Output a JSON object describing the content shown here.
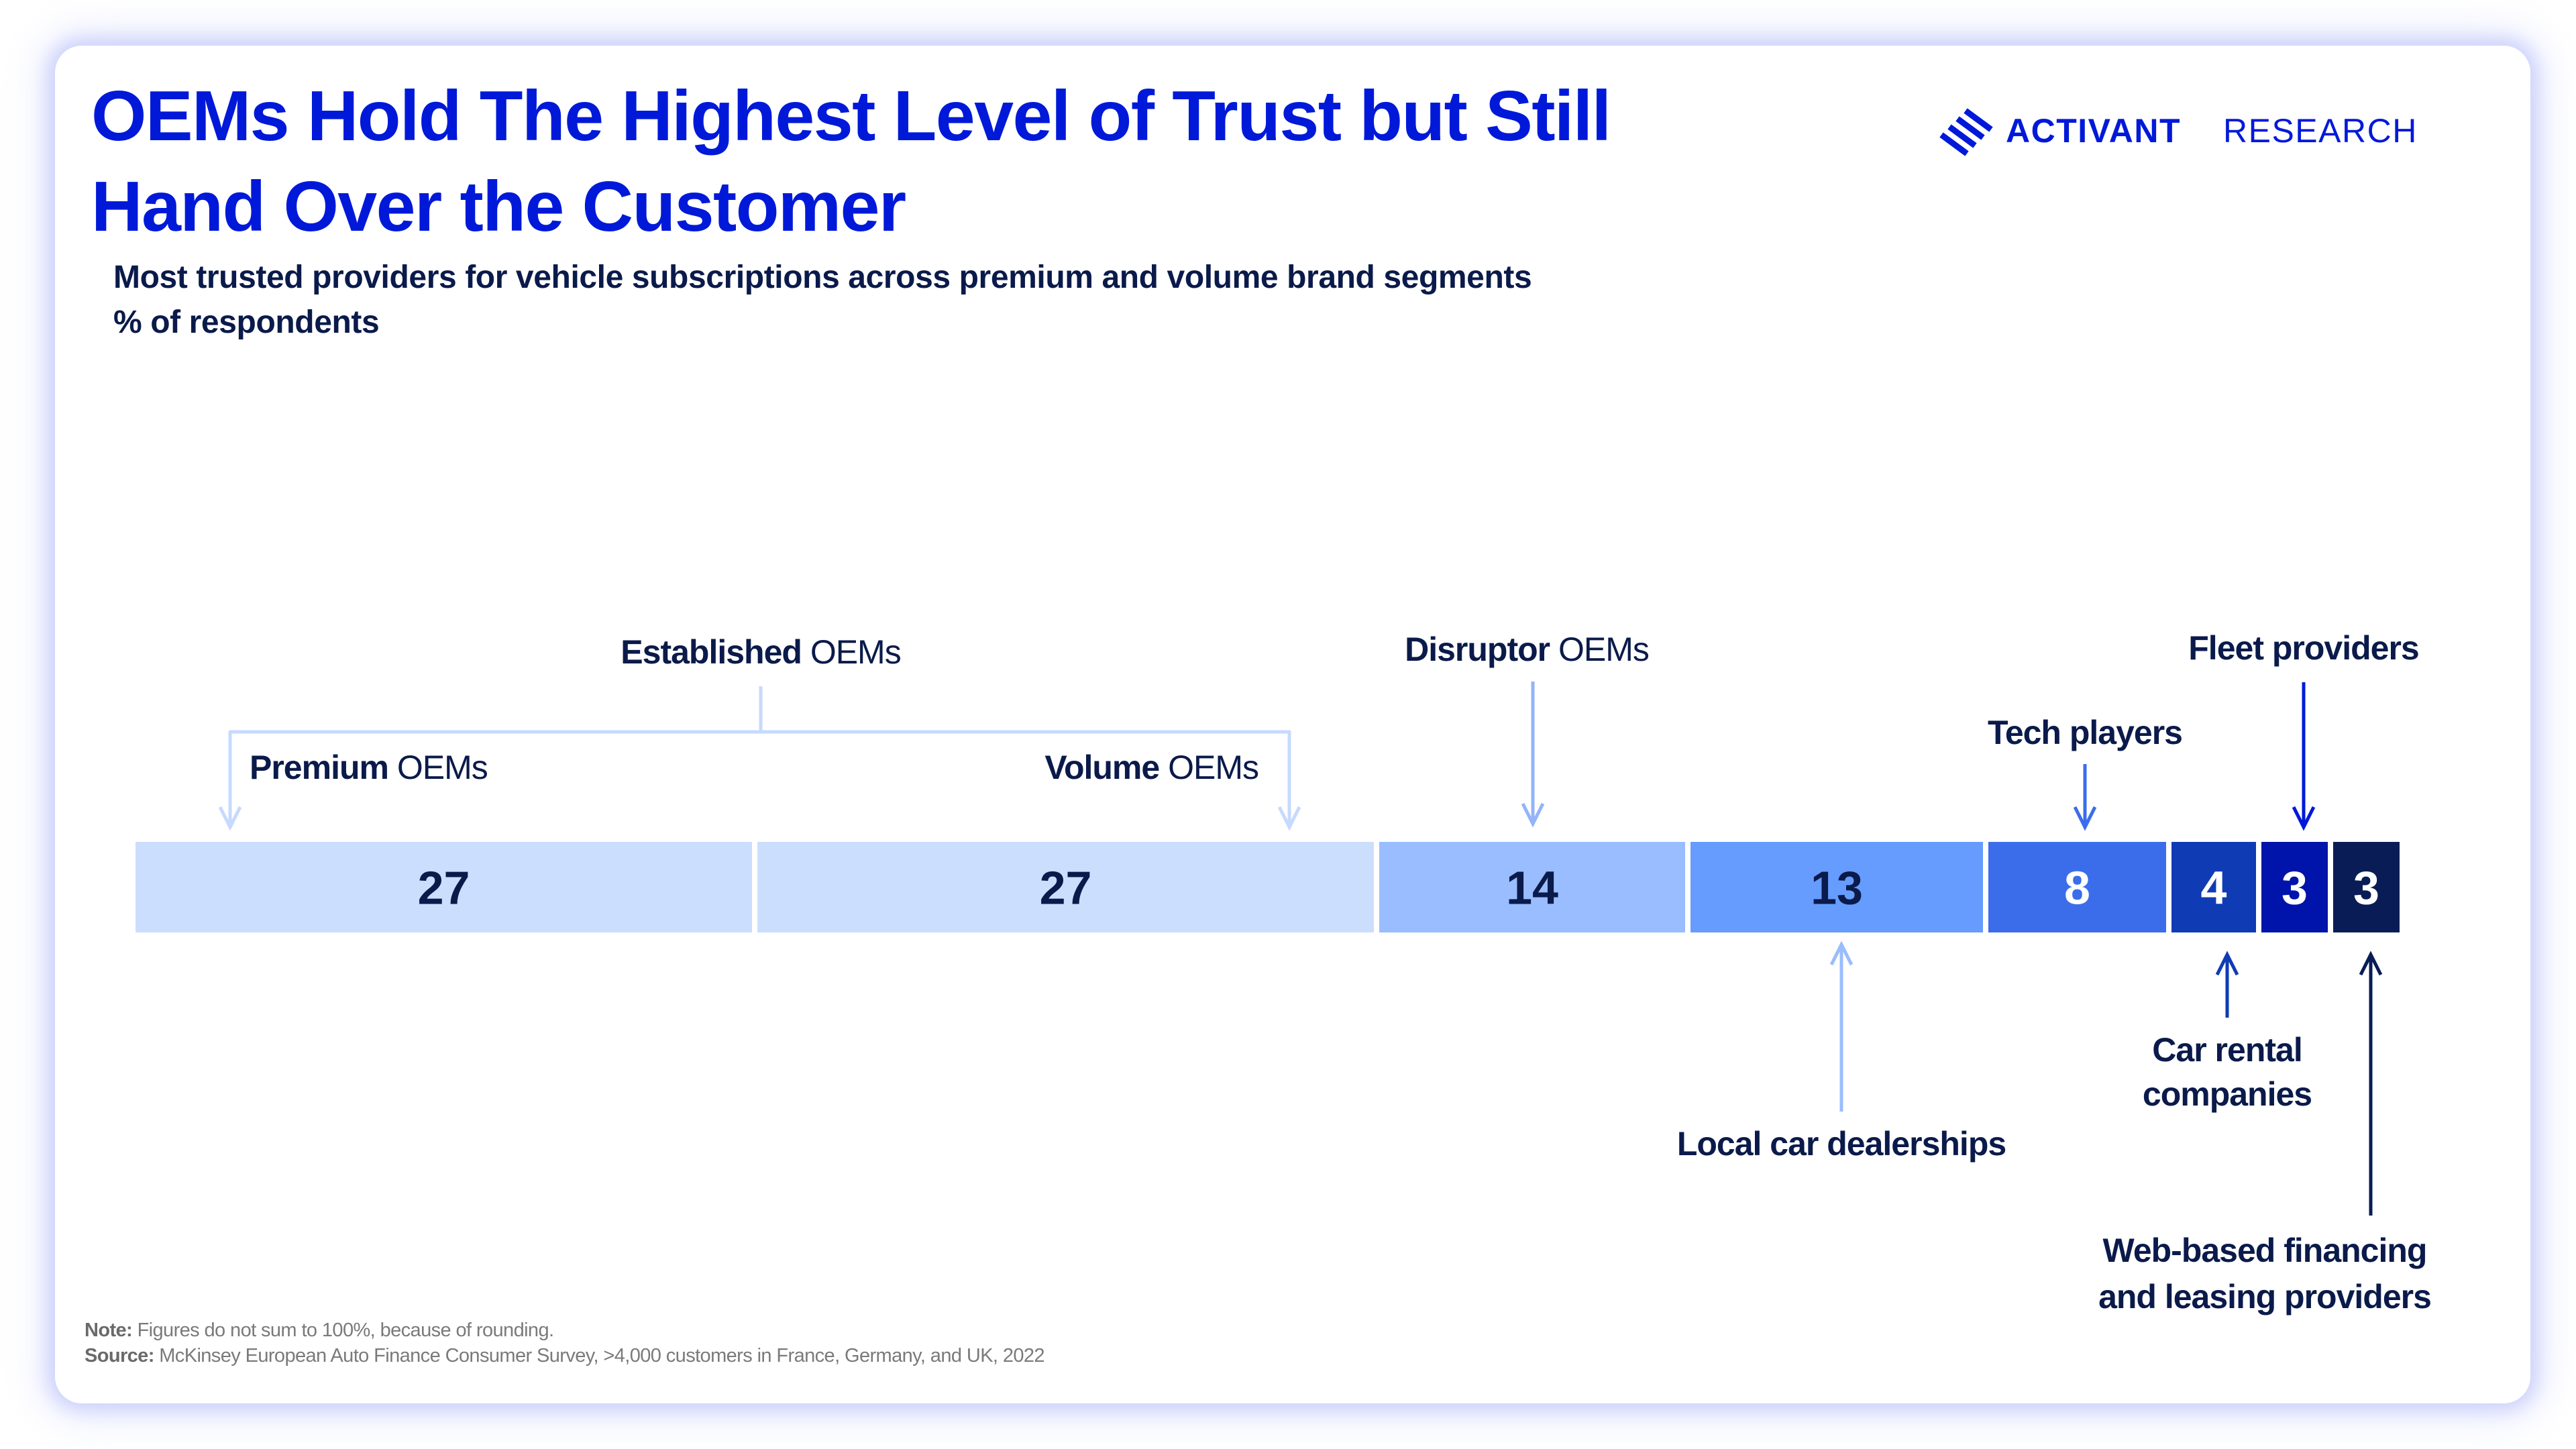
{
  "header": {
    "title_lines": [
      "OEMs Hold The Highest Level of Trust but Still",
      "Hand Over the Customer"
    ],
    "subtitle": "Most trusted providers for vehicle subscriptions across premium and volume brand segments",
    "unit": "% of respondents"
  },
  "brand": {
    "logo_icon": "activant-stripes-icon",
    "word1": "ACTIVANT",
    "word2": "RESEARCH"
  },
  "colors": {
    "title": "#0019D9",
    "text_dark": "#0A1A4A",
    "text_light": "#FFFFFF",
    "bracket": "#C6DAFD",
    "footnote": "#7A7A7A"
  },
  "chart_data": {
    "type": "bar",
    "subtype": "stacked-100-single-bar",
    "title": "OEMs Hold The Highest Level of Trust but Still Hand Over the Customer",
    "subtitle": "Most trusted providers for vehicle subscriptions across premium and volume brand segments",
    "unit": "% of respondents",
    "xlabel": "",
    "ylabel": "",
    "grid": false,
    "legend": "none (callout labels with arrows)",
    "categories": [
      "Premium OEMs",
      "Volume OEMs",
      "Disruptor OEMs",
      "Local car dealerships",
      "Tech players",
      "Car rental companies",
      "Fleet providers",
      "Web-based financing and leasing providers"
    ],
    "values": [
      27,
      27,
      14,
      13,
      8,
      4,
      3,
      3
    ],
    "segments": [
      {
        "label_bold": "Premium",
        "label_regular": " OEMs",
        "value": 27,
        "color": "#CCDEFD",
        "text_color": "#0A1A4A",
        "arrow_color": "#C6DAFD",
        "label_position": "above",
        "group": "Established OEMs"
      },
      {
        "label_bold": "Volume",
        "label_regular": " OEMs",
        "value": 27,
        "color": "#CCDEFD",
        "text_color": "#0A1A4A",
        "arrow_color": "#C6DAFD",
        "label_position": "above",
        "group": "Established OEMs"
      },
      {
        "label_bold": "Disruptor",
        "label_regular": " OEMs",
        "value": 14,
        "color": "#99BDFE",
        "text_color": "#0A1A4A",
        "arrow_color": "#94B4FA",
        "label_position": "above"
      },
      {
        "label_bold": "Local car dealerships",
        "label_regular": "",
        "value": 13,
        "color": "#669CFE",
        "text_color": "#0A1A4A",
        "arrow_color": "#99BDFE",
        "label_position": "below"
      },
      {
        "label_bold": "Tech players",
        "label_regular": "",
        "value": 8,
        "color": "#3B6DEB",
        "text_color": "#FFFFFF",
        "arrow_color": "#3B6DEB",
        "label_position": "above"
      },
      {
        "label_bold": "Car rental",
        "label_bold_line2": "companies",
        "label_regular": "",
        "value": 4,
        "color": "#0F3CB5",
        "text_color": "#FFFFFF",
        "arrow_color": "#0F3CB5",
        "label_position": "below"
      },
      {
        "label_bold": "Fleet providers",
        "label_regular": "",
        "value": 3,
        "color": "#0013AA",
        "text_color": "#FFFFFF",
        "arrow_color": "#0019D9",
        "label_position": "above"
      },
      {
        "label_bold": "Web-based financing",
        "label_bold_line2": "and leasing providers",
        "label_regular": "",
        "value": 3,
        "color": "#0A1C55",
        "text_color": "#FFFFFF",
        "arrow_color": "#0A1C55",
        "label_position": "below"
      }
    ],
    "groups": [
      {
        "label_bold": "Established",
        "label_regular": " OEMs",
        "members": [
          "Premium OEMs",
          "Volume OEMs"
        ]
      }
    ],
    "annotations": {
      "note_label": "Note:",
      "note_text": " Figures do not sum to 100%, because of rounding.",
      "source_label": "Source:",
      "source_text": " McKinsey European Auto Finance Consumer Survey, >4,000 customers in France, Germany, and UK, 2022"
    }
  }
}
